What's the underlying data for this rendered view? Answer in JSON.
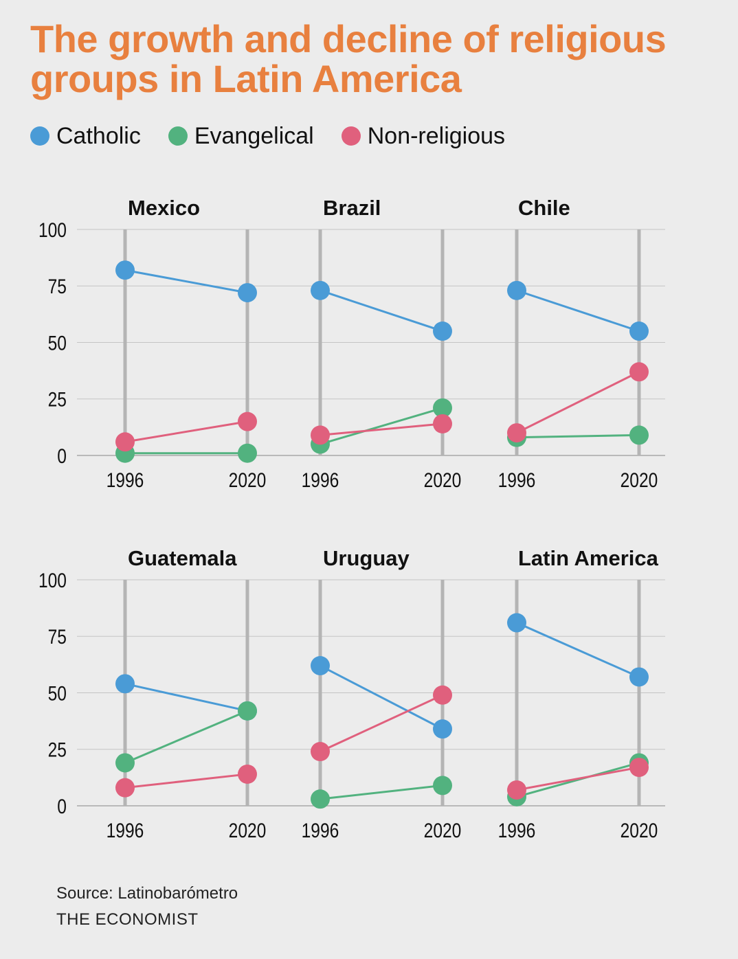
{
  "title": "The growth and decline of religious groups in Latin America",
  "legend": [
    {
      "label": "Catholic",
      "color": "#4a9bd6"
    },
    {
      "label": "Evangelical",
      "color": "#52b27f"
    },
    {
      "label": "Non-religious",
      "color": "#e0607d"
    }
  ],
  "source": "Source: Latinobarómetro",
  "brand": "THE ECONOMIST",
  "chart_data": {
    "type": "line",
    "x": [
      "1996",
      "2020"
    ],
    "ylim": [
      0,
      100
    ],
    "yticks": [
      0,
      25,
      50,
      75,
      100
    ],
    "grid": true,
    "legend_position": "top-left",
    "series_names": [
      "Catholic",
      "Evangelical",
      "Non-religious"
    ],
    "panels": [
      {
        "title": "Mexico",
        "series": [
          {
            "name": "Catholic",
            "values": [
              82,
              72
            ]
          },
          {
            "name": "Evangelical",
            "values": [
              1,
              1
            ]
          },
          {
            "name": "Non-religious",
            "values": [
              6,
              15
            ]
          }
        ]
      },
      {
        "title": "Brazil",
        "series": [
          {
            "name": "Catholic",
            "values": [
              73,
              55
            ]
          },
          {
            "name": "Evangelical",
            "values": [
              5,
              21
            ]
          },
          {
            "name": "Non-religious",
            "values": [
              9,
              14
            ]
          }
        ]
      },
      {
        "title": "Chile",
        "series": [
          {
            "name": "Catholic",
            "values": [
              73,
              55
            ]
          },
          {
            "name": "Evangelical",
            "values": [
              8,
              9
            ]
          },
          {
            "name": "Non-religious",
            "values": [
              10,
              37
            ]
          }
        ]
      },
      {
        "title": "Guatemala",
        "series": [
          {
            "name": "Catholic",
            "values": [
              54,
              42
            ]
          },
          {
            "name": "Evangelical",
            "values": [
              19,
              42
            ]
          },
          {
            "name": "Non-religious",
            "values": [
              8,
              14
            ]
          }
        ]
      },
      {
        "title": "Uruguay",
        "series": [
          {
            "name": "Catholic",
            "values": [
              62,
              34
            ]
          },
          {
            "name": "Evangelical",
            "values": [
              3,
              9
            ]
          },
          {
            "name": "Non-religious",
            "values": [
              24,
              49
            ]
          }
        ]
      },
      {
        "title": "Latin America",
        "series": [
          {
            "name": "Catholic",
            "values": [
              81,
              57
            ]
          },
          {
            "name": "Evangelical",
            "values": [
              4,
              19
            ]
          },
          {
            "name": "Non-religious",
            "values": [
              7,
              17
            ]
          }
        ]
      }
    ]
  }
}
